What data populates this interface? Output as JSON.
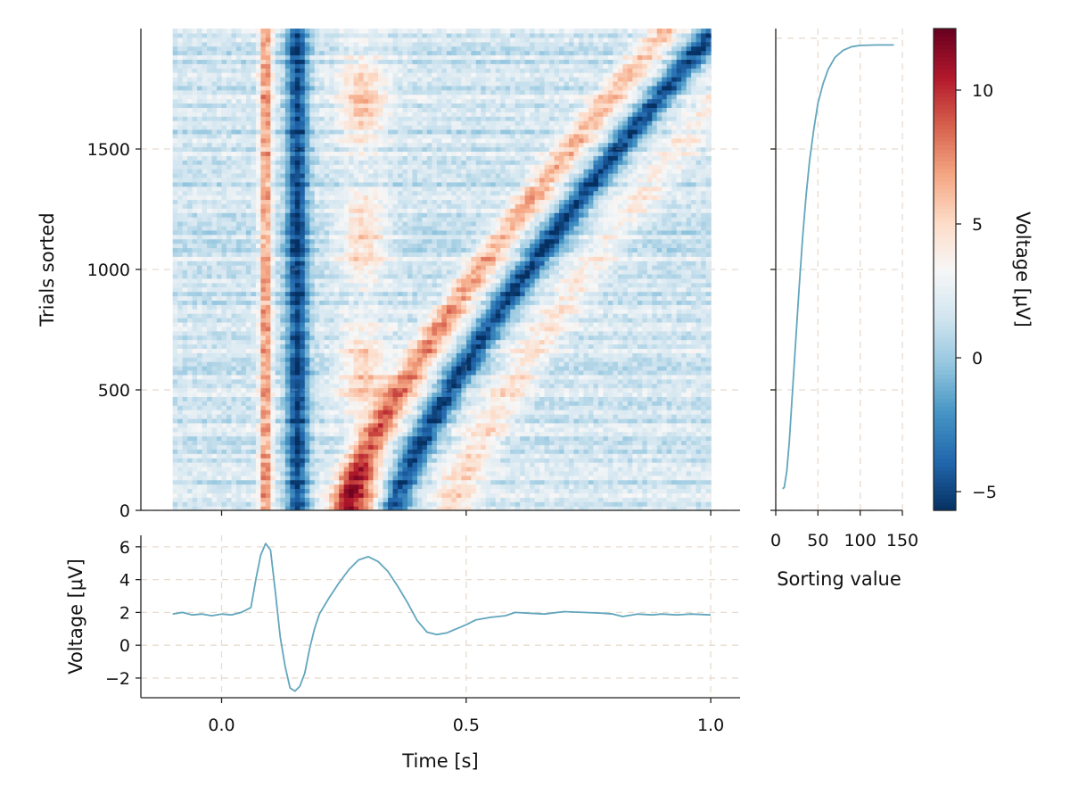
{
  "colors": {
    "line": "#62a6bd",
    "grid": "#e8dccf",
    "colormap": [
      "#053061",
      "#2166ac",
      "#4393c3",
      "#92c5de",
      "#d1e5f0",
      "#f7f7f7",
      "#fddbc7",
      "#f4a582",
      "#d6604d",
      "#b2182b",
      "#67001f"
    ]
  },
  "chart_data": [
    {
      "type": "heatmap",
      "panel": "erp-image",
      "colormap": "RdBu_r",
      "x_range": [
        -0.1,
        1.0
      ],
      "y_range": [
        0,
        2000
      ],
      "color_range": [
        -5.7,
        12.3
      ],
      "ylabel": "Trials sorted",
      "yticks": [
        0,
        500,
        1000,
        1500
      ],
      "ytick_labels": [
        "0",
        "500",
        "1000",
        "1500"
      ],
      "xticks": [
        0.0,
        0.5,
        1.0
      ],
      "xlim": [
        -0.165,
        1.06
      ],
      "ylim": [
        0,
        2000
      ],
      "grid": true,
      "features": [
        {
          "name": "early positive band",
          "time": 0.09,
          "width": 0.012,
          "value": 6
        },
        {
          "name": "negative band",
          "time": 0.155,
          "width": 0.022,
          "value": -5
        },
        {
          "name": "positive band",
          "time": 0.29,
          "width": 0.03,
          "value": 4
        },
        {
          "name": "sorted positive wave",
          "time_start": 0.27,
          "time_end": 0.98,
          "value": 7
        },
        {
          "name": "sorted negative wave",
          "time_start": 0.34,
          "time_end": 1.0,
          "value": -5
        }
      ]
    },
    {
      "type": "line",
      "panel": "sorting-curve",
      "xlabel": "Sorting value",
      "xticks": [
        0,
        50,
        100,
        150
      ],
      "xtick_labels": [
        "0",
        "50",
        "100",
        "150"
      ],
      "xlim": [
        0,
        150
      ],
      "ylim": [
        0,
        2000
      ],
      "grid": true,
      "x": [
        8,
        10,
        13,
        16,
        20,
        24,
        28,
        32,
        36,
        40,
        45,
        50,
        56,
        62,
        70,
        80,
        90,
        100,
        120,
        140
      ],
      "y": [
        90,
        95,
        160,
        280,
        500,
        720,
        940,
        1140,
        1310,
        1450,
        1580,
        1690,
        1770,
        1830,
        1880,
        1910,
        1925,
        1930,
        1932,
        1932
      ]
    },
    {
      "type": "line",
      "panel": "erp-average",
      "xlabel": "Time [s]",
      "ylabel": "Voltage [μV]",
      "xticks": [
        0.0,
        0.5,
        1.0
      ],
      "xtick_labels": [
        "0.0",
        "0.5",
        "1.0"
      ],
      "yticks": [
        -2,
        0,
        2,
        4,
        6
      ],
      "ytick_labels": [
        "−2",
        "0",
        "2",
        "4",
        "6"
      ],
      "xlim": [
        -0.165,
        1.06
      ],
      "ylim": [
        -3.2,
        6.7
      ],
      "grid": true,
      "x": [
        -0.1,
        -0.08,
        -0.06,
        -0.04,
        -0.02,
        0.0,
        0.02,
        0.04,
        0.06,
        0.07,
        0.08,
        0.09,
        0.1,
        0.11,
        0.12,
        0.13,
        0.14,
        0.15,
        0.16,
        0.17,
        0.18,
        0.19,
        0.2,
        0.22,
        0.24,
        0.26,
        0.28,
        0.3,
        0.32,
        0.34,
        0.36,
        0.38,
        0.4,
        0.42,
        0.44,
        0.46,
        0.48,
        0.5,
        0.52,
        0.55,
        0.58,
        0.6,
        0.63,
        0.66,
        0.7,
        0.74,
        0.78,
        0.8,
        0.82,
        0.85,
        0.88,
        0.9,
        0.93,
        0.96,
        1.0
      ],
      "y": [
        1.9,
        2.0,
        1.85,
        1.9,
        1.8,
        1.9,
        1.85,
        2.0,
        2.3,
        4.0,
        5.5,
        6.2,
        5.8,
        3.2,
        0.5,
        -1.3,
        -2.6,
        -2.8,
        -2.5,
        -1.7,
        -0.2,
        1.0,
        1.9,
        2.9,
        3.8,
        4.6,
        5.2,
        5.4,
        5.1,
        4.5,
        3.6,
        2.6,
        1.5,
        0.8,
        0.65,
        0.75,
        1.0,
        1.25,
        1.55,
        1.7,
        1.8,
        2.0,
        1.95,
        1.9,
        2.05,
        2.0,
        1.95,
        1.9,
        1.75,
        1.9,
        1.85,
        1.9,
        1.85,
        1.9,
        1.85
      ]
    },
    {
      "type": "colorbar",
      "panel": "colorbar",
      "label": "Voltage [μV]",
      "range": [
        -5.7,
        12.3
      ],
      "ticks": [
        -5,
        0,
        5,
        10
      ],
      "tick_labels": [
        "−5",
        "0",
        "5",
        "10"
      ]
    }
  ]
}
